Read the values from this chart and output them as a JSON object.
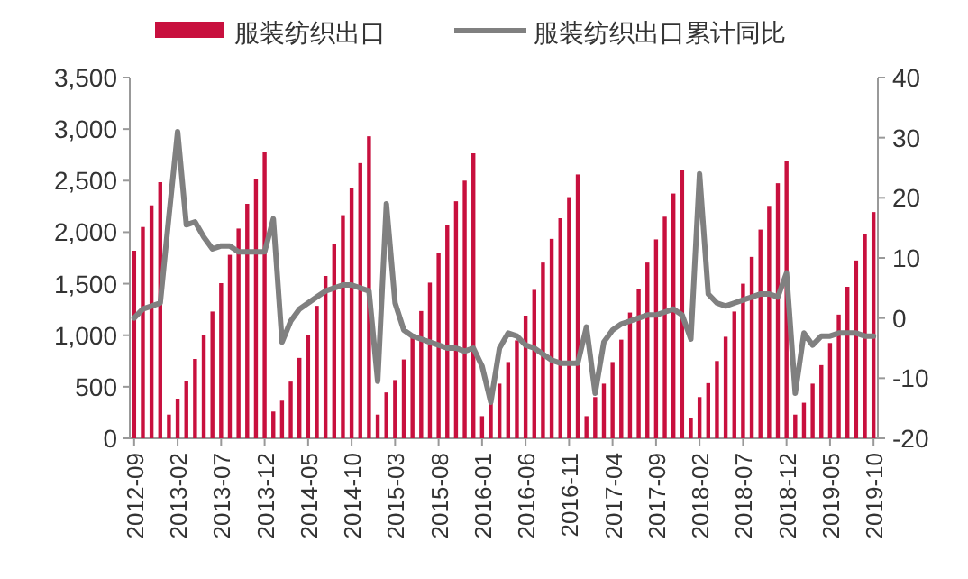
{
  "chart_data": {
    "type": "bar",
    "legend": "top",
    "categories": [
      "2012-09",
      null,
      null,
      null,
      null,
      "2013-02",
      null,
      null,
      null,
      null,
      "2013-07",
      null,
      null,
      null,
      null,
      "2013-12",
      null,
      null,
      null,
      null,
      "2014-05",
      null,
      null,
      null,
      null,
      "2014-10",
      null,
      null,
      null,
      null,
      "2015-03",
      null,
      null,
      null,
      null,
      "2015-08",
      null,
      null,
      null,
      null,
      "2016-01",
      null,
      null,
      null,
      null,
      "2016-06",
      null,
      null,
      null,
      null,
      "2016-11",
      null,
      null,
      null,
      null,
      "2017-04",
      null,
      null,
      null,
      null,
      "2017-09",
      null,
      null,
      null,
      null,
      "2018-02",
      null,
      null,
      null,
      null,
      "2018-07",
      null,
      null,
      null,
      null,
      "2018-12",
      null,
      null,
      null,
      null,
      "2019-05",
      null,
      null,
      null,
      null,
      "2019-10"
    ],
    "series": [
      {
        "name": "服装纺织出口",
        "color": "#c8103e",
        "values": [
          1820,
          2050,
          2260,
          2485,
          230,
          385,
          555,
          770,
          1000,
          1230,
          1505,
          1780,
          2035,
          2275,
          2520,
          2780,
          260,
          365,
          550,
          780,
          1005,
          1285,
          1575,
          1885,
          2165,
          2425,
          2670,
          2930,
          230,
          445,
          565,
          765,
          985,
          1235,
          1510,
          1800,
          2065,
          2300,
          2500,
          2765,
          215,
          400,
          530,
          740,
          950,
          1190,
          1440,
          1705,
          1935,
          2135,
          2340,
          2560,
          215,
          400,
          530,
          740,
          957,
          1220,
          1450,
          1705,
          1930,
          2150,
          2375,
          2607,
          200,
          400,
          535,
          750,
          985,
          1230,
          1500,
          1760,
          2025,
          2255,
          2475,
          2695,
          230,
          345,
          530,
          710,
          925,
          1200,
          1470,
          1725,
          1980,
          2195
        ]
      },
      {
        "name": "服装纺织出口累计同比",
        "type": "line",
        "axis": "y2",
        "color": "#808080",
        "values": [
          0,
          1.5,
          2,
          2.5,
          17,
          31,
          15.5,
          16,
          13.5,
          11.5,
          12,
          12,
          11,
          11,
          11,
          11,
          16.5,
          -4,
          -0.5,
          1.5,
          2.5,
          3.5,
          4.5,
          5,
          5.5,
          5.5,
          5,
          4.5,
          -10.5,
          19,
          2.5,
          -2,
          -3,
          -3.5,
          -4,
          -4.5,
          -5,
          -5,
          -5.5,
          -5,
          -8,
          -14,
          -5,
          -2.5,
          -3,
          -4.5,
          -5,
          -6,
          -7,
          -7.5,
          -7.5,
          -7.5,
          -1.5,
          -12.5,
          -4,
          -2,
          -1,
          -0.5,
          0,
          0.5,
          0.5,
          1,
          1.5,
          0.5,
          -3.5,
          24,
          4,
          2.5,
          2,
          2.5,
          3,
          3.5,
          4,
          4,
          3.5,
          7.5,
          -12.5,
          -2.5,
          -4.5,
          -3,
          -3,
          -2.5,
          -2.5,
          -2.5,
          -3,
          -3
        ]
      }
    ],
    "ylim": [
      0,
      3500
    ],
    "yticks": [
      0,
      {
        "value": 500,
        "label": "500"
      },
      {
        "value": 1000,
        "label": "1,000"
      },
      {
        "value": 1500,
        "label": "1,500"
      },
      {
        "value": 2000,
        "label": "2,000"
      },
      {
        "value": 2500,
        "label": "2,500"
      },
      {
        "value": 3000,
        "label": "3,000"
      },
      {
        "value": 3500,
        "label": "3,500"
      }
    ],
    "y2lim": [
      -20,
      40
    ],
    "y2ticks": [
      -20,
      -10,
      0,
      10,
      20,
      30,
      40
    ]
  }
}
